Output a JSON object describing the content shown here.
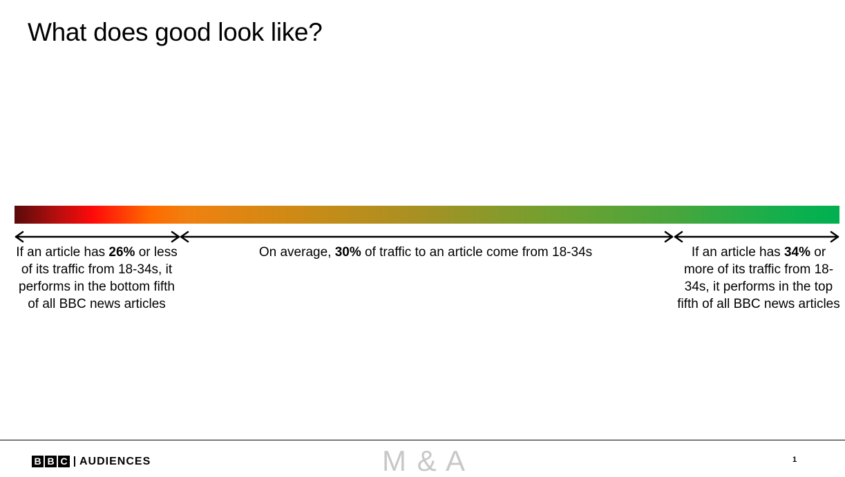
{
  "slide": {
    "title": "What does good look like?"
  },
  "scale": {
    "colors": {
      "low": "#5a0a0a",
      "red": "#ff0a0a",
      "orange": "#ff6a00",
      "mid": "#aa9022",
      "high": "#00b050"
    }
  },
  "segments": {
    "left": {
      "pre": "If an article has ",
      "value": "26%",
      "post": " or less of its traffic from 18-34s, it performs in the bottom fifth of all BBC news articles"
    },
    "middle": {
      "pre": "On average, ",
      "value": "30%",
      "post": " of traffic to an article come from 18-34s"
    },
    "right": {
      "pre": "If an article has ",
      "value": "34%",
      "post": " or more of its traffic from 18-34s, it performs in the top fifth of all BBC news articles"
    }
  },
  "footer": {
    "bbc_letters": [
      "B",
      "B",
      "C"
    ],
    "brand_text": "AUDIENCES",
    "ma_logo": "M & A",
    "page_number": "1"
  }
}
